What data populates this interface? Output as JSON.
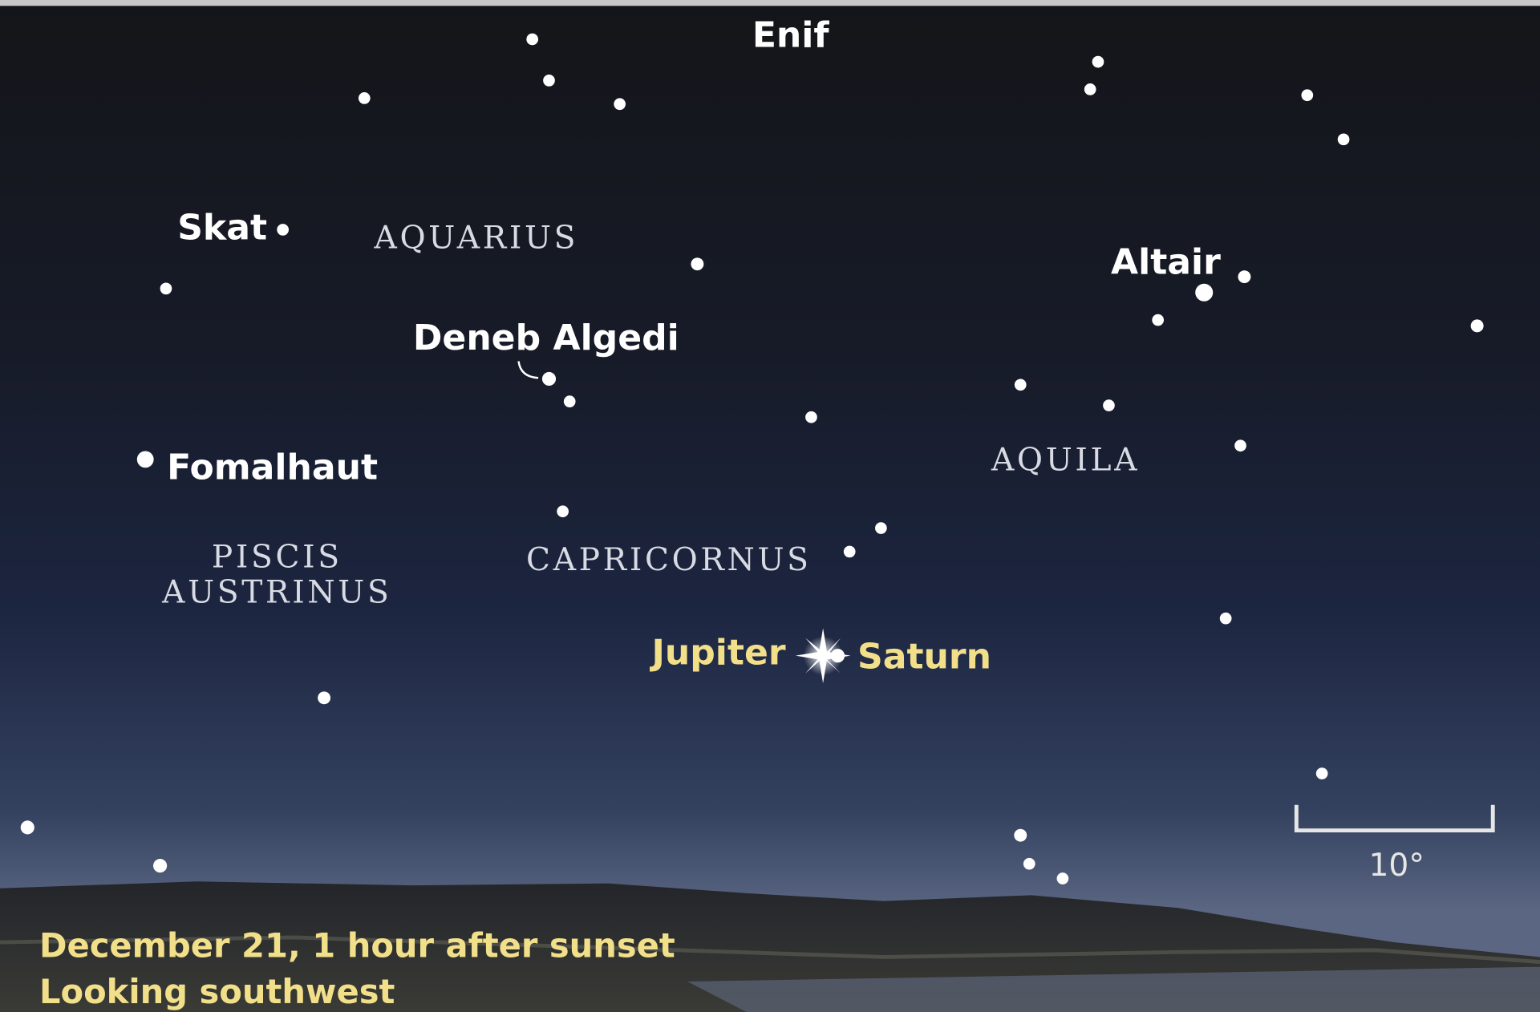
{
  "star_labels": [
    "Enif",
    "Skat",
    "Altair",
    "Deneb Algedi",
    "Fomalhaut"
  ],
  "constellations": [
    "AQUARIUS",
    "AQUILA",
    "CAPRICORNUS",
    "PISCIS",
    "AUSTRINUS"
  ],
  "planets": [
    "Jupiter",
    "Saturn"
  ],
  "scale_label": "10°",
  "caption": [
    "December 21, 1 hour after sunset",
    "Looking southwest"
  ]
}
